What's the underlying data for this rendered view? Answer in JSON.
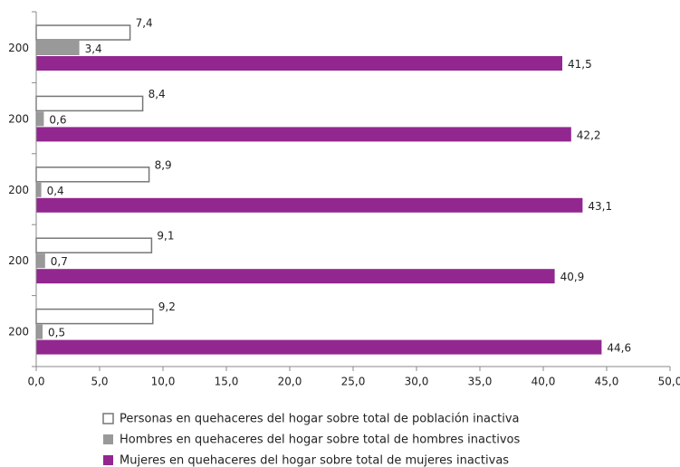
{
  "chart_data": {
    "type": "hbar",
    "categories": [
      "200",
      "200",
      "200",
      "200",
      "200"
    ],
    "series": [
      {
        "name": "Personas en quehaceres del hogar sobre total de población inactiva",
        "color": "#ffffff",
        "values": [
          7.4,
          8.4,
          8.9,
          9.1,
          9.2
        ],
        "value_labels": [
          "7,4",
          "8,4",
          "8,9",
          "9,1",
          "9,2"
        ]
      },
      {
        "name": "Hombres en quehaceres del hogar sobre total de hombres inactivos",
        "color": "#999999",
        "values": [
          3.4,
          0.6,
          0.4,
          0.7,
          0.5
        ],
        "value_labels": [
          "3,4",
          "0,6",
          "0,4",
          "0,7",
          "0,5"
        ]
      },
      {
        "name": "Mujeres en quehaceres del hogar sobre total de mujeres inactivas",
        "color": "#92278f",
        "values": [
          41.5,
          42.2,
          43.1,
          40.9,
          44.6
        ],
        "value_labels": [
          "41,5",
          "42,2",
          "43,1",
          "40,9",
          "44,6"
        ]
      }
    ],
    "xlim": [
      0,
      50
    ],
    "xticks": [
      {
        "value": 0,
        "label": "0,0"
      },
      {
        "value": 5,
        "label": "5,0"
      },
      {
        "value": 10,
        "label": "10,0"
      },
      {
        "value": 15,
        "label": "15,0"
      },
      {
        "value": 20,
        "label": "20,0"
      },
      {
        "value": 25,
        "label": "25,0"
      },
      {
        "value": 30,
        "label": "30,0"
      },
      {
        "value": 35,
        "label": "35,0"
      },
      {
        "value": 40,
        "label": "40,0"
      },
      {
        "value": 45,
        "label": "45,0"
      },
      {
        "value": 50,
        "label": "50,0"
      }
    ],
    "legend": "bottom"
  }
}
